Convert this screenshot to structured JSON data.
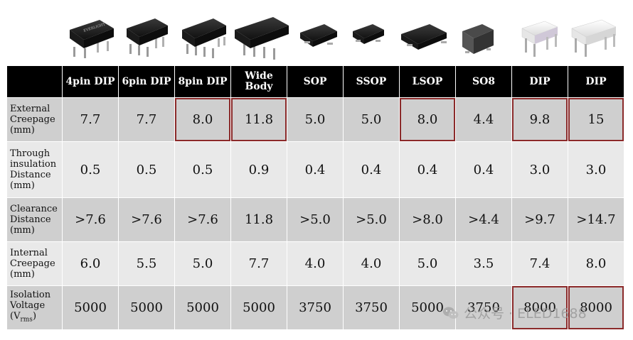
{
  "table": {
    "headers": [
      "4pin DIP",
      "6pin DIP",
      "8pin DIP",
      "Wide Body",
      "SOP",
      "SSOP",
      "LSOP",
      "SO8",
      "DIP",
      "DIP"
    ],
    "rows": [
      {
        "label": "External Creepage (mm)",
        "values": [
          "7.7",
          "7.7",
          "8.0",
          "11.8",
          "5.0",
          "5.0",
          "8.0",
          "4.4",
          "9.8",
          "15"
        ],
        "highlight": [
          2,
          3,
          6,
          8,
          9
        ]
      },
      {
        "label": "Through insulation Distance (mm)",
        "values": [
          "0.5",
          "0.5",
          "0.5",
          "0.9",
          "0.4",
          "0.4",
          "0.4",
          "0.4",
          "3.0",
          "3.0"
        ],
        "highlight": []
      },
      {
        "label": "Clearance Distance (mm)",
        "values": [
          ">7.6",
          ">7.6",
          ">7.6",
          "11.8",
          ">5.0",
          ">5.0",
          ">8.0",
          ">4.4",
          ">9.7",
          ">14.7"
        ],
        "highlight": []
      },
      {
        "label": "Internal Creepage (mm)",
        "values": [
          "6.0",
          "5.5",
          "5.0",
          "7.7",
          "4.0",
          "4.0",
          "5.0",
          "3.5",
          "7.4",
          "8.0"
        ],
        "highlight": []
      },
      {
        "label_main": "Isolation Voltage (V",
        "label_sub": "rms",
        "label_end": ")",
        "values": [
          "5000",
          "5000",
          "5000",
          "5000",
          "3750",
          "3750",
          "5000",
          "3750",
          "8000",
          "8000"
        ],
        "highlight": [
          8,
          9
        ]
      }
    ]
  },
  "package_label": "EVERLIGHT",
  "watermark": {
    "text": "公众号 · ELED1688",
    "icon": "wechat-icon"
  },
  "colors": {
    "header_bg": "#000000",
    "row_dark": "#cfcfcf",
    "row_light": "#e9e9e9",
    "highlight": "#8b2a2a"
  }
}
